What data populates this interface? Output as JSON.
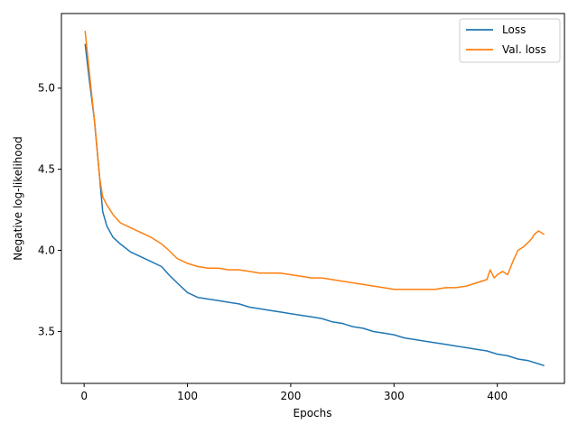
{
  "chart_data": {
    "type": "line",
    "xlabel": "Epochs",
    "ylabel": "Negative log-likelihood",
    "xlim": [
      -22,
      465
    ],
    "ylim": [
      3.18,
      5.46
    ],
    "xticks": [
      0,
      100,
      200,
      300,
      400
    ],
    "yticks": [
      3.5,
      4.0,
      4.5,
      5.0
    ],
    "xtick_labels": [
      "0",
      "100",
      "200",
      "300",
      "400"
    ],
    "ytick_labels": [
      "3.5",
      "4.0",
      "4.5",
      "5.0"
    ],
    "grid": false,
    "legend_position": "top-right",
    "series": [
      {
        "name": "Loss",
        "color": "#1f77b4",
        "x": [
          1,
          5,
          10,
          15,
          18,
          22,
          28,
          35,
          45,
          55,
          65,
          75,
          82,
          90,
          100,
          110,
          120,
          130,
          140,
          150,
          160,
          170,
          180,
          190,
          200,
          210,
          220,
          230,
          240,
          250,
          260,
          270,
          280,
          290,
          300,
          310,
          320,
          330,
          340,
          350,
          360,
          370,
          380,
          390,
          400,
          410,
          420,
          430,
          440,
          445
        ],
        "y": [
          5.27,
          5.05,
          4.8,
          4.45,
          4.24,
          4.15,
          4.08,
          4.04,
          3.99,
          3.96,
          3.93,
          3.9,
          3.85,
          3.8,
          3.74,
          3.71,
          3.7,
          3.69,
          3.68,
          3.67,
          3.65,
          3.64,
          3.63,
          3.62,
          3.61,
          3.6,
          3.59,
          3.58,
          3.56,
          3.55,
          3.53,
          3.52,
          3.5,
          3.49,
          3.48,
          3.46,
          3.45,
          3.44,
          3.43,
          3.42,
          3.41,
          3.4,
          3.39,
          3.38,
          3.36,
          3.35,
          3.33,
          3.32,
          3.3,
          3.29
        ]
      },
      {
        "name": "Val. loss",
        "color": "#ff7f0e",
        "x": [
          1,
          5,
          10,
          15,
          18,
          22,
          28,
          35,
          45,
          55,
          65,
          75,
          82,
          90,
          100,
          110,
          120,
          130,
          140,
          150,
          160,
          170,
          180,
          190,
          200,
          210,
          220,
          230,
          240,
          250,
          260,
          270,
          280,
          290,
          300,
          310,
          320,
          330,
          340,
          350,
          360,
          370,
          380,
          390,
          393,
          397,
          400,
          405,
          410,
          415,
          420,
          425,
          430,
          433,
          436,
          440,
          445
        ],
        "y": [
          5.35,
          5.1,
          4.8,
          4.45,
          4.33,
          4.28,
          4.22,
          4.17,
          4.14,
          4.11,
          4.08,
          4.04,
          4.0,
          3.95,
          3.92,
          3.9,
          3.89,
          3.89,
          3.88,
          3.88,
          3.87,
          3.86,
          3.86,
          3.86,
          3.85,
          3.84,
          3.83,
          3.83,
          3.82,
          3.81,
          3.8,
          3.79,
          3.78,
          3.77,
          3.76,
          3.76,
          3.76,
          3.76,
          3.76,
          3.77,
          3.77,
          3.78,
          3.8,
          3.82,
          3.88,
          3.83,
          3.85,
          3.87,
          3.85,
          3.93,
          4.0,
          4.02,
          4.05,
          4.07,
          4.1,
          4.12,
          4.1
        ]
      }
    ]
  }
}
